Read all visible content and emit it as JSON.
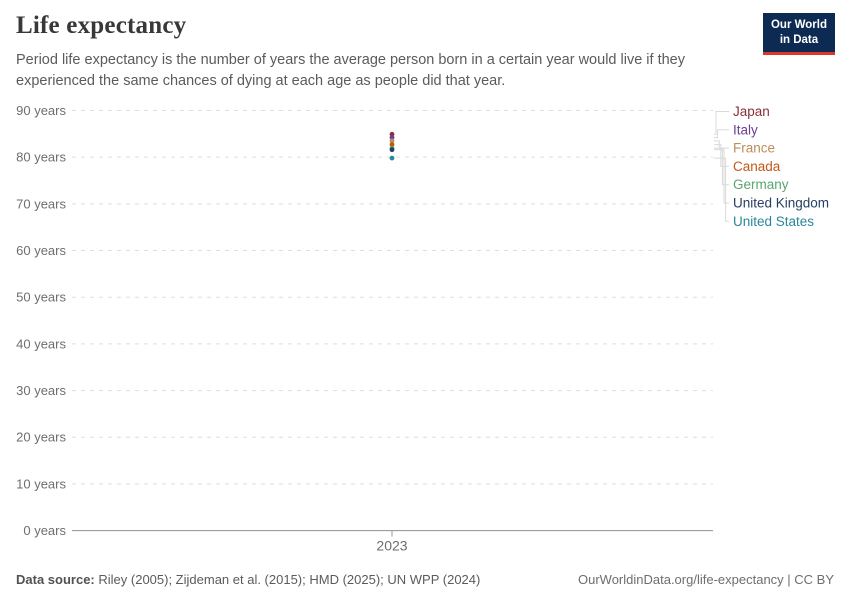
{
  "header": {
    "title": "Life expectancy",
    "subtitle": "Period life expectancy is the number of years the average person born in a certain year would live if they experienced the same chances of dying at each age as people did that year."
  },
  "logo": {
    "line1": "Our World",
    "line2": "in Data",
    "bg_color": "#0d2a52",
    "bar_color": "#dc352c"
  },
  "chart_data": {
    "type": "scatter",
    "title": "Life expectancy",
    "x": [
      2023
    ],
    "x_tick_label": "2023",
    "xlabel": "",
    "ylabel": "",
    "ylim": [
      0,
      90
    ],
    "ytick_step": 10,
    "ytick_suffix": " years",
    "grid": true,
    "legend_position": "right",
    "units": "years",
    "series": [
      {
        "name": "Japan",
        "values": [
          84.9
        ],
        "color": "#883039"
      },
      {
        "name": "Italy",
        "values": [
          84.2
        ],
        "color": "#6d3e91"
      },
      {
        "name": "France",
        "values": [
          83.5
        ],
        "color": "#bc8e5a"
      },
      {
        "name": "Canada",
        "values": [
          82.7
        ],
        "color": "#c05917"
      },
      {
        "name": "Germany",
        "values": [
          81.9
        ],
        "color": "#5aa570"
      },
      {
        "name": "United Kingdom",
        "values": [
          81.6
        ],
        "color": "#243e63"
      },
      {
        "name": "United States",
        "values": [
          79.8
        ],
        "color": "#2a879a"
      }
    ]
  },
  "footer": {
    "source_label": "Data source:",
    "sources": "Riley (2005); Zijdeman et al. (2015); HMD (2025); UN WPP (2024)",
    "attribution": "OurWorldinData.org/life-expectancy | CC BY"
  }
}
